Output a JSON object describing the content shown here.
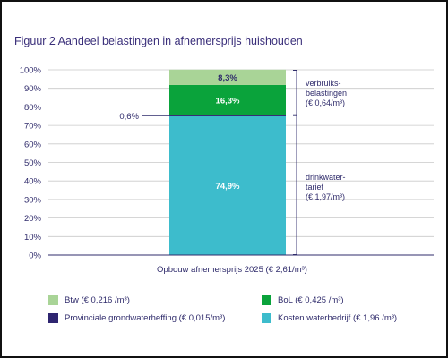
{
  "title": "Figuur 2 Aandeel belastingen in afnemersprijs huishouden",
  "chart_data": {
    "type": "bar",
    "stacked": true,
    "xlabel": "Opbouw afnemersprijs 2025 (€ 2,61/m³)",
    "ylim": [
      0,
      100
    ],
    "y_ticks": [
      "0%",
      "10%",
      "20%",
      "30%",
      "40%",
      "50%",
      "60%",
      "70%",
      "80%",
      "90%",
      "100%"
    ],
    "grid": true,
    "legend_position": "bottom",
    "series": [
      {
        "key": "kosten",
        "value": 74.9,
        "label": "74,9%",
        "color": "#3dbccc",
        "label_color": "#ffffff"
      },
      {
        "key": "provinciale",
        "value": 0.6,
        "label": "0,6%",
        "color": "#2e2570",
        "label_color": "#2f2b6b"
      },
      {
        "key": "bol",
        "value": 16.3,
        "label": "16,3%",
        "color": "#0aa33b",
        "label_color": "#ffffff"
      },
      {
        "key": "btw",
        "value": 8.3,
        "label": "8,3%",
        "color": "#a9d497",
        "label_color": "#2f2b6b"
      }
    ],
    "annotations": [
      {
        "text": [
          "verbruiks-",
          "belastingen",
          "(€ 0,64/m³)"
        ],
        "from": 75.5,
        "to": 100
      },
      {
        "text": [
          "drinkwater-",
          "tarief",
          "(€ 1,97/m³)"
        ],
        "from": 0,
        "to": 75.5
      }
    ]
  },
  "legend": [
    {
      "label": "Btw (€ 0,216 /m³)",
      "color": "#a9d497"
    },
    {
      "label": "BoL (€ 0,425 /m³)",
      "color": "#0aa33b"
    },
    {
      "label": "Provinciale grondwaterheffing (€ 0,015/m³)",
      "color": "#2e2570"
    },
    {
      "label": "Kosten waterbedrijf (€ 1,96 /m³)",
      "color": "#3dbccc"
    }
  ]
}
